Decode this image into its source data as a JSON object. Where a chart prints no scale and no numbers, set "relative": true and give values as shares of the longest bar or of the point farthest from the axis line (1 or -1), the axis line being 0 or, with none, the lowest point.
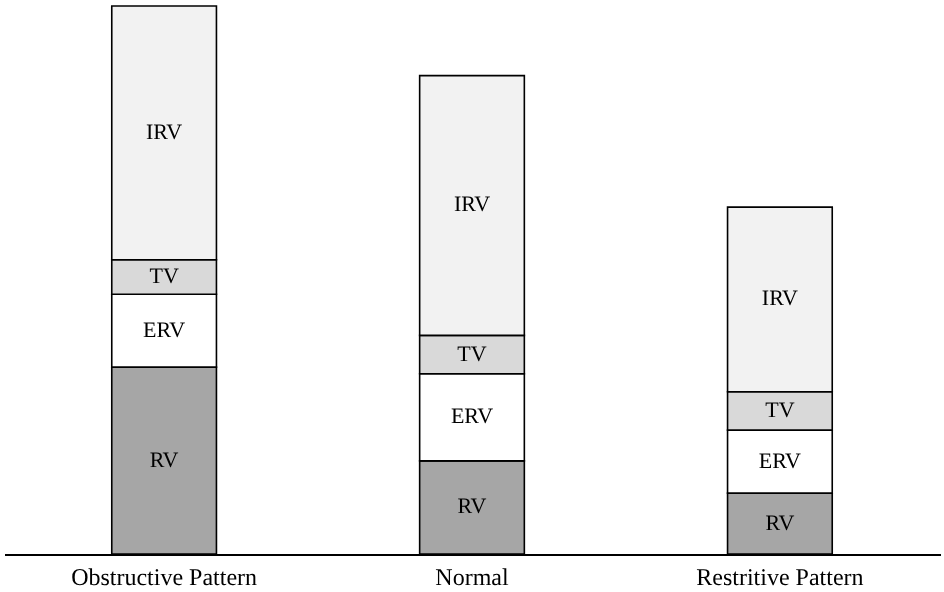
{
  "chart_data": {
    "type": "bar",
    "stacked": true,
    "relative": true,
    "categories": [
      "Obstructive Pattern",
      "Normal",
      "Restritive  Pattern"
    ],
    "series": [
      {
        "name": "RV",
        "color": "#a6a6a6",
        "values": [
          0.341,
          0.17,
          0.111
        ]
      },
      {
        "name": "ERV",
        "color": "#ffffff",
        "values": [
          0.133,
          0.159,
          0.115
        ]
      },
      {
        "name": "TV",
        "color": "#d9d9d9",
        "values": [
          0.063,
          0.07,
          0.07
        ]
      },
      {
        "name": "IRV",
        "color": "#f2f2f2",
        "values": [
          0.463,
          0.474,
          0.337
        ]
      }
    ]
  }
}
